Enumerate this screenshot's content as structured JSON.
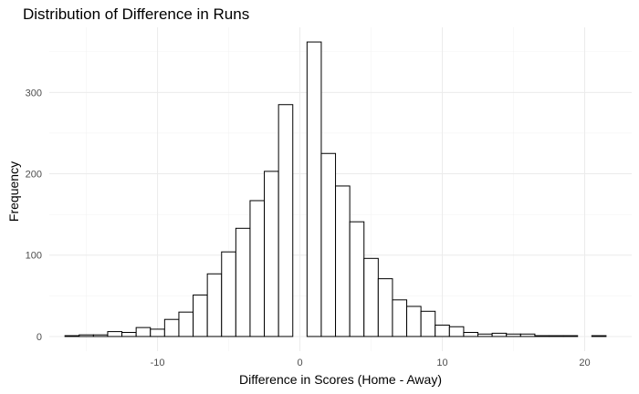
{
  "chart_data": {
    "type": "bar",
    "title": "Distribution of Difference in Runs",
    "xlabel": "Difference in Scores (Home - Away)",
    "ylabel": "Frequency",
    "xlim": [
      -17.6,
      23.3
    ],
    "ylim": [
      -18,
      380
    ],
    "x_ticks": [
      -10,
      0,
      10,
      20
    ],
    "y_ticks": [
      0,
      100,
      200,
      300
    ],
    "x_minor": [
      -15,
      -5,
      5,
      15
    ],
    "y_minor": [
      50,
      150,
      250,
      350
    ],
    "grid": true,
    "bin_width": 1,
    "bins": [
      {
        "x": -16,
        "count": 1
      },
      {
        "x": -15,
        "count": 2
      },
      {
        "x": -14,
        "count": 2
      },
      {
        "x": -13,
        "count": 6
      },
      {
        "x": -12,
        "count": 5
      },
      {
        "x": -11,
        "count": 11
      },
      {
        "x": -10,
        "count": 9
      },
      {
        "x": -9,
        "count": 21
      },
      {
        "x": -8,
        "count": 30
      },
      {
        "x": -7,
        "count": 51
      },
      {
        "x": -6,
        "count": 77
      },
      {
        "x": -5,
        "count": 104
      },
      {
        "x": -4,
        "count": 133
      },
      {
        "x": -3,
        "count": 167
      },
      {
        "x": -2,
        "count": 203
      },
      {
        "x": -1,
        "count": 285
      },
      {
        "x": 0,
        "count": 0
      },
      {
        "x": 1,
        "count": 362
      },
      {
        "x": 2,
        "count": 225
      },
      {
        "x": 3,
        "count": 185
      },
      {
        "x": 4,
        "count": 141
      },
      {
        "x": 5,
        "count": 96
      },
      {
        "x": 6,
        "count": 71
      },
      {
        "x": 7,
        "count": 45
      },
      {
        "x": 8,
        "count": 37
      },
      {
        "x": 9,
        "count": 31
      },
      {
        "x": 10,
        "count": 14
      },
      {
        "x": 11,
        "count": 12
      },
      {
        "x": 12,
        "count": 5
      },
      {
        "x": 13,
        "count": 3
      },
      {
        "x": 14,
        "count": 4
      },
      {
        "x": 15,
        "count": 3
      },
      {
        "x": 16,
        "count": 3
      },
      {
        "x": 17,
        "count": 1
      },
      {
        "x": 18,
        "count": 1
      },
      {
        "x": 19,
        "count": 1
      },
      {
        "x": 20,
        "count": 0
      },
      {
        "x": 21,
        "count": 1
      }
    ]
  }
}
